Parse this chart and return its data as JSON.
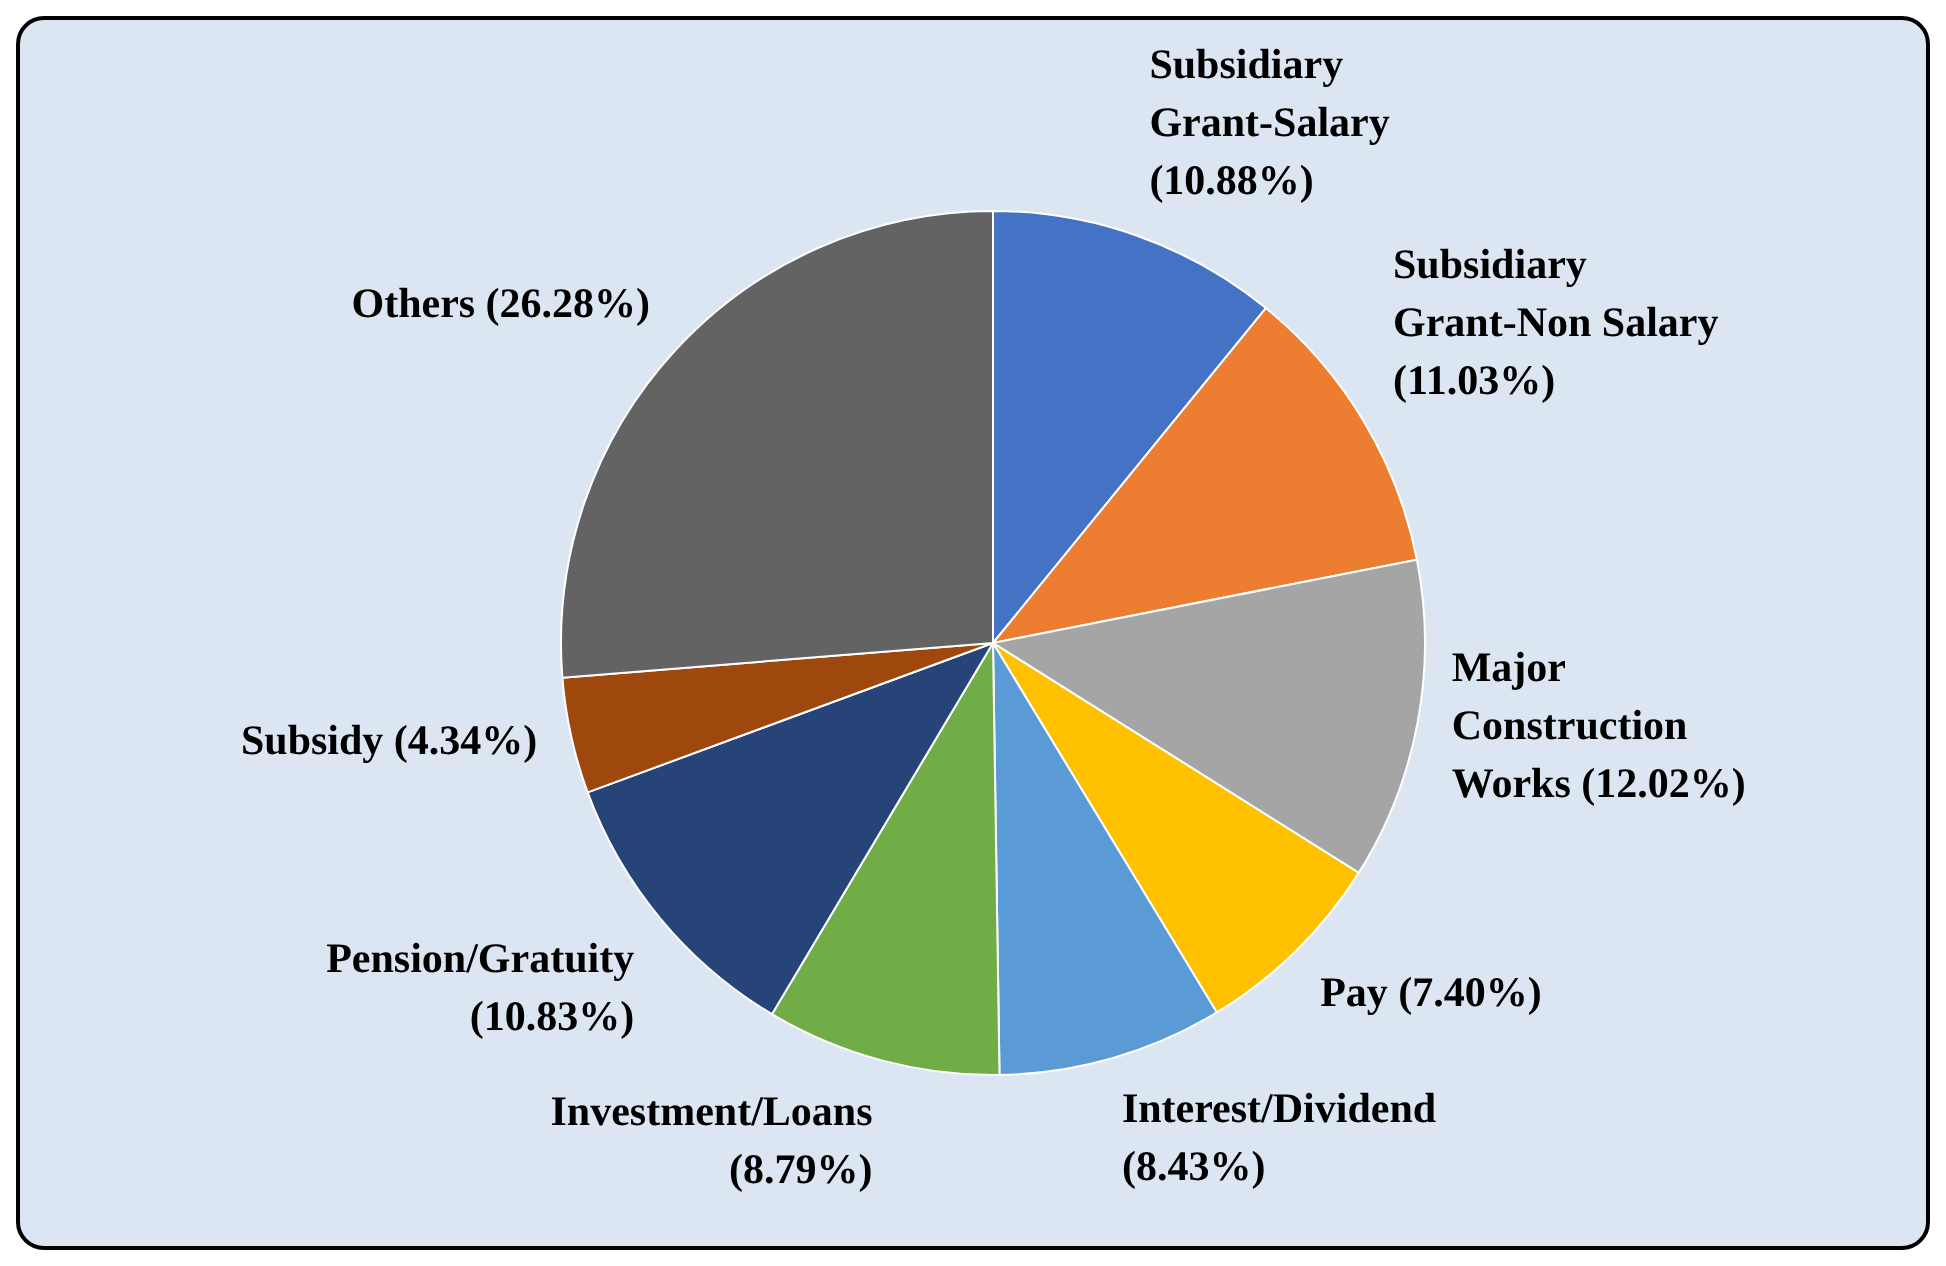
{
  "chart_data": {
    "type": "pie",
    "categories": [
      "Subsidiary Grant-Salary",
      "Subsidiary Grant-Non Salary",
      "Major Construction Works",
      "Pay",
      "Interest/Dividend",
      "Investment/Loans",
      "Pension/Gratuity",
      "Subsidy",
      "Others"
    ],
    "values": [
      10.88,
      11.03,
      12.02,
      7.4,
      8.43,
      8.79,
      10.83,
      4.34,
      26.28
    ],
    "value_labels": [
      "(10.88%)",
      "(11.03%)",
      "(12.02%)",
      "(7.40%)",
      "(8.43%)",
      "(8.79%)",
      "(10.83%)",
      "(4.34%)",
      "(26.28%)"
    ],
    "colors": [
      "#4472c4",
      "#ed7d31",
      "#a5a5a5",
      "#ffc000",
      "#5b9bd5",
      "#70ad47",
      "#264478",
      "#9e480e",
      "#636363"
    ],
    "legend": false
  }
}
